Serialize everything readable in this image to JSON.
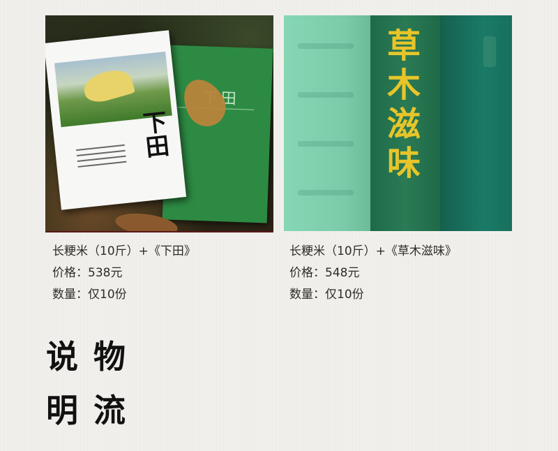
{
  "products": [
    {
      "name": "长粳米（10斤）+《下田》",
      "price": "价格：538元",
      "quantity": "数量：仅10份",
      "book_title": "下田"
    },
    {
      "name": "长粳米（10斤）+《草木滋味》",
      "price": "价格：548元",
      "quantity": "数量：仅10份",
      "book_title": "草木滋味"
    }
  ],
  "section_heading": {
    "row1": "说物",
    "row2": "明流"
  },
  "colors": {
    "background": "#f1efec",
    "spine_gold": "#e7c52a",
    "book_green": "#2d8a43"
  }
}
